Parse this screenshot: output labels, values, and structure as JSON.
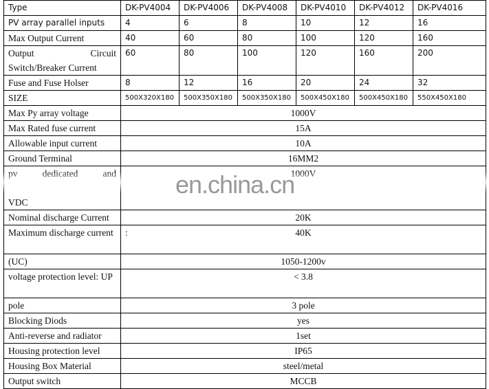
{
  "header": {
    "label": "Type",
    "models": [
      "DK-PV4004",
      "DK-PV4006",
      "DK-PV4008",
      "DK-PV4010",
      "DK-PV4012",
      "DK-PV4016"
    ]
  },
  "per_model_rows": [
    {
      "label": "PV array parallel inputs",
      "values": [
        "4",
        "6",
        "8",
        "10",
        "12",
        "16"
      ]
    },
    {
      "label": "Max Output Current",
      "values": [
        "40",
        "60",
        "80",
        "100",
        "120",
        "160"
      ]
    },
    {
      "label": "Output Circuit Switch/Breaker Current",
      "values": [
        "60",
        "80",
        "100",
        "120",
        "160",
        "200"
      ]
    },
    {
      "label": "Fuse and Fuse Holser",
      "values": [
        "8",
        "12",
        "16",
        "20",
        "24",
        "32"
      ]
    },
    {
      "label": "SIZE",
      "values": [
        "500X320X180",
        "500X350X180",
        "500X350X180",
        "500X450X180",
        "500X450X180",
        "550X450X180"
      ]
    }
  ],
  "common_rows": [
    {
      "label": "Max Py array voltage",
      "value": "1000V"
    },
    {
      "label": "Max Rated fuse current",
      "value": "15A"
    },
    {
      "label": "Allowable input current",
      "value": "10A"
    },
    {
      "label": "Ground Terminal",
      "value": "16MM2"
    },
    {
      "label": "pv dedicated and",
      "label2": "VDC",
      "value": "1000V"
    },
    {
      "label": "Nominal discharge Current",
      "value": "20K"
    },
    {
      "label": "Maximum discharge current",
      "prefix": ":",
      "value": "40K"
    },
    {
      "label": "(UC)",
      "value": "1050-1200v"
    },
    {
      "label": "voltage protection level: UP",
      "value": "< 3.8"
    },
    {
      "label": "pole",
      "value": "3 pole"
    },
    {
      "label": "Blocking Diods",
      "value": "yes"
    },
    {
      "label": "Anti-reverse and radiator",
      "value": "1set"
    },
    {
      "label": "Housing protection level",
      "value": "IP65"
    },
    {
      "label": "Housing Box Material",
      "value": "steel/metal"
    },
    {
      "label": "Output switch",
      "value": "MCCB"
    }
  ],
  "watermark": "en.china.cn"
}
